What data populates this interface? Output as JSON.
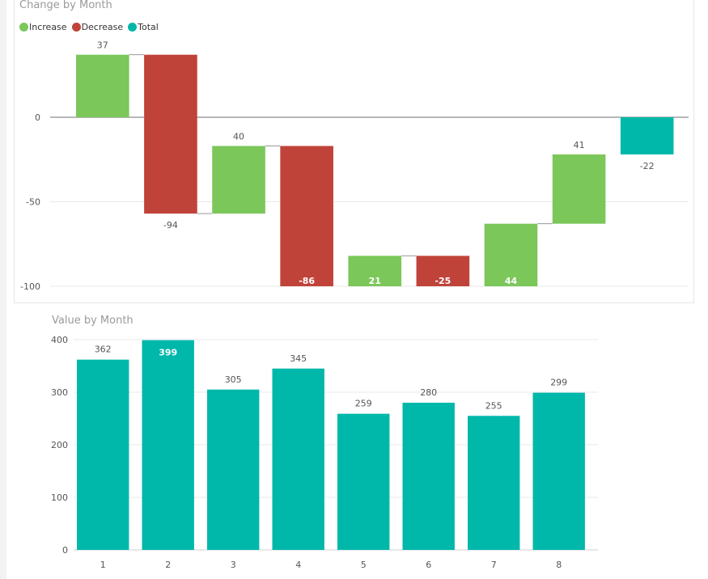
{
  "colors": {
    "increase": "#7bc75a",
    "decrease": "#c0433a",
    "total": "#00b8aa",
    "bar": "#00b8aa",
    "grid": "#e8e8e8",
    "zero_line": "#8c8c8c",
    "axis_text": "#555555"
  },
  "waterfall": {
    "title": "Change by Month",
    "legend": [
      "Increase",
      "Decrease",
      "Total"
    ]
  },
  "column": {
    "title": "Value by Month"
  },
  "chart_data": [
    {
      "type": "bar",
      "subtype": "waterfall",
      "title": "Change by Month",
      "legend": [
        "Increase",
        "Decrease",
        "Total"
      ],
      "legend_position": "top-left",
      "steps": [
        {
          "value": 37,
          "kind": "Increase",
          "label": "37"
        },
        {
          "value": -94,
          "kind": "Decrease",
          "label": "-94"
        },
        {
          "value": 40,
          "kind": "Increase",
          "label": "40"
        },
        {
          "value": -86,
          "kind": "Decrease",
          "label": "-86"
        },
        {
          "value": 21,
          "kind": "Increase",
          "label": "21"
        },
        {
          "value": -25,
          "kind": "Decrease",
          "label": "-25"
        },
        {
          "value": 44,
          "kind": "Increase",
          "label": "44"
        },
        {
          "value": 41,
          "kind": "Increase",
          "label": "41"
        },
        {
          "value": -22,
          "kind": "Total",
          "label": "-22"
        }
      ],
      "yticks": [
        0,
        -50,
        -100
      ],
      "ylim": [
        -100,
        37
      ],
      "grid": true
    },
    {
      "type": "bar",
      "title": "Value by Month",
      "categories": [
        "1",
        "2",
        "3",
        "4",
        "5",
        "6",
        "7",
        "8"
      ],
      "values": [
        362,
        399,
        305,
        345,
        259,
        280,
        255,
        299
      ],
      "yticks": [
        0,
        100,
        200,
        300,
        400
      ],
      "ylim": [
        0,
        400
      ],
      "grid": true
    }
  ]
}
